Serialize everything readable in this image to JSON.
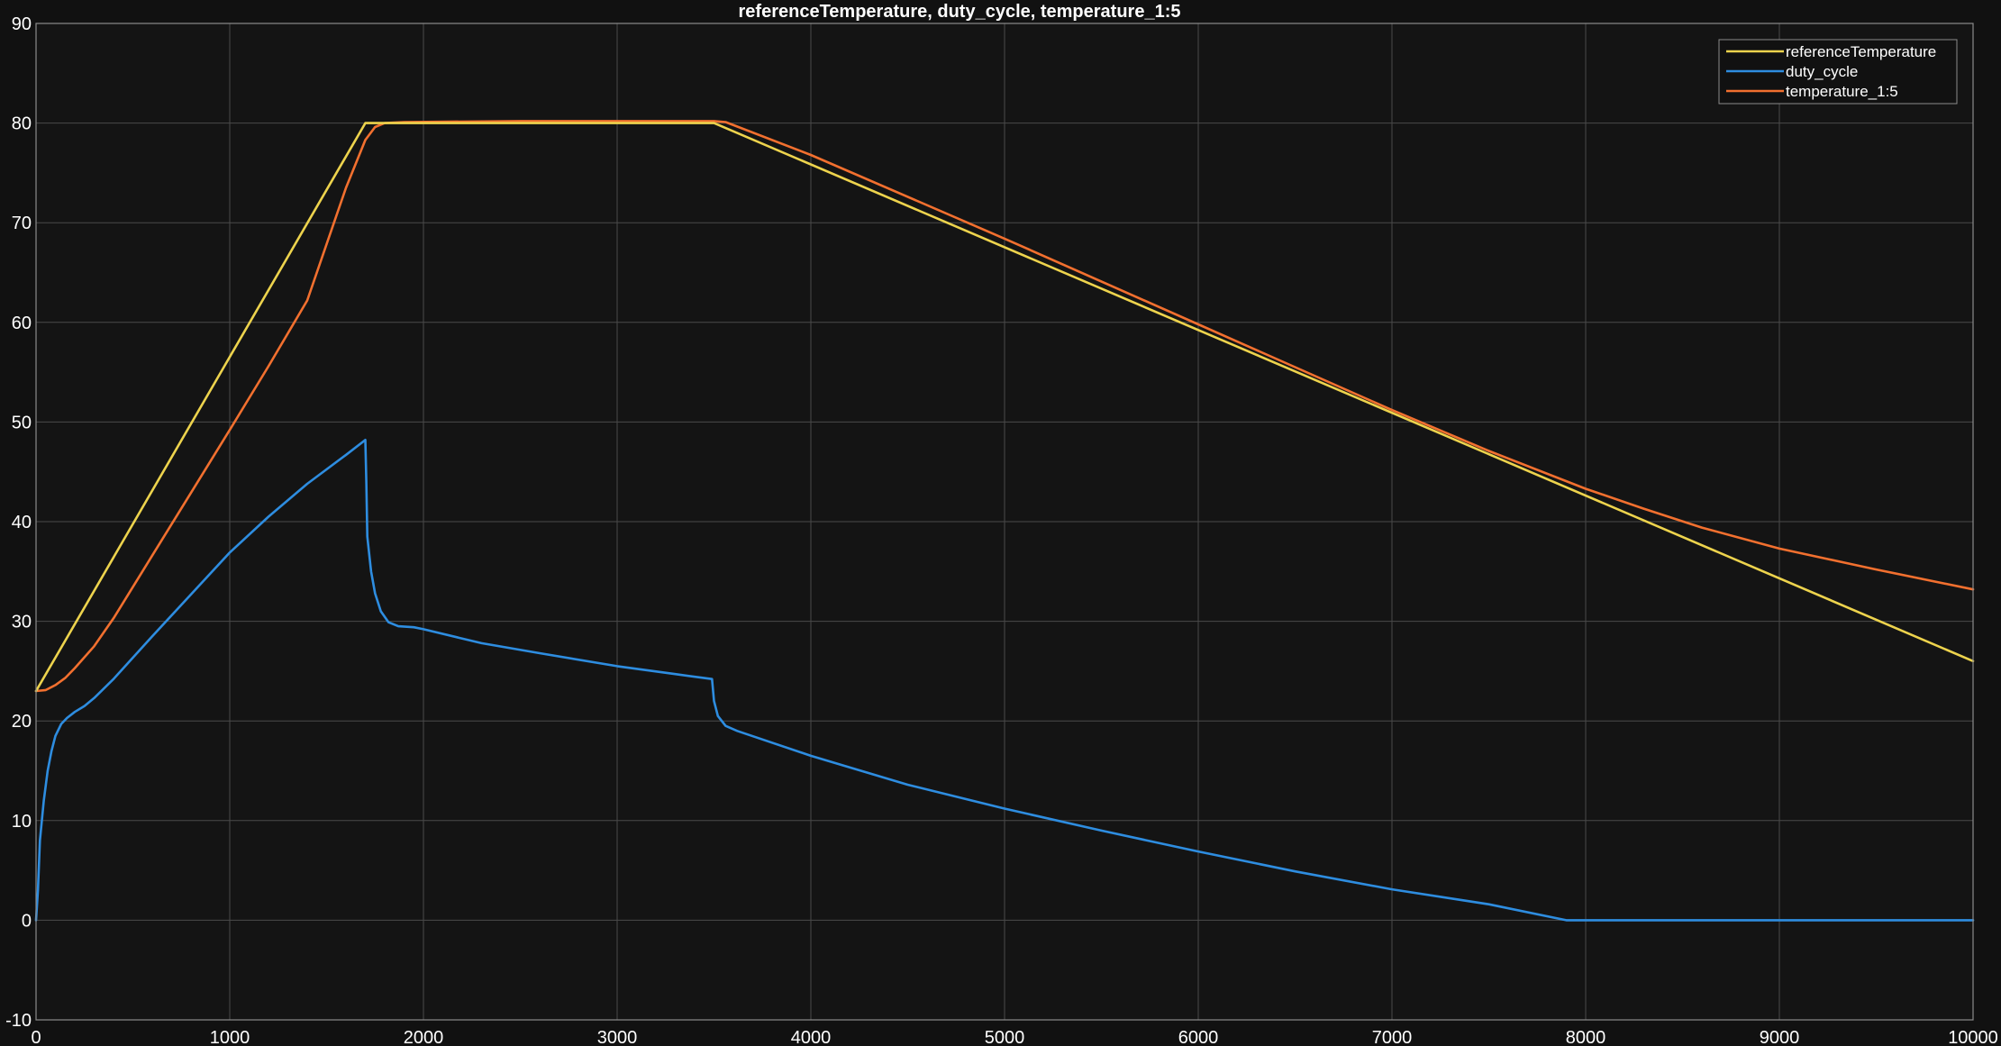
{
  "colors": {
    "background": "#111111",
    "axes_background": "#141414",
    "grid": "#4a4a4a",
    "frame": "#8c8c8c",
    "text": "#ffffff"
  },
  "chart_data": {
    "type": "line",
    "title": "referenceTemperature, duty_cycle, temperature_1:5",
    "xlabel": "",
    "ylabel": "",
    "xlim": [
      0,
      10000
    ],
    "ylim": [
      -10,
      90
    ],
    "xticks": [
      0,
      1000,
      2000,
      3000,
      4000,
      5000,
      6000,
      7000,
      8000,
      9000,
      10000
    ],
    "yticks": [
      -10,
      0,
      10,
      20,
      30,
      40,
      50,
      60,
      70,
      80,
      90
    ],
    "grid": true,
    "legend_position": "top-right",
    "series": [
      {
        "name": "referenceTemperature",
        "color": "#edd34d",
        "points": [
          [
            0,
            23
          ],
          [
            1700,
            80
          ],
          [
            3500,
            80
          ],
          [
            10000,
            26
          ]
        ]
      },
      {
        "name": "duty_cycle",
        "color": "#2e8de0",
        "points": [
          [
            0,
            0
          ],
          [
            10,
            3
          ],
          [
            20,
            8
          ],
          [
            40,
            12
          ],
          [
            60,
            15
          ],
          [
            80,
            17
          ],
          [
            100,
            18.5
          ],
          [
            130,
            19.7
          ],
          [
            160,
            20.3
          ],
          [
            200,
            20.9
          ],
          [
            250,
            21.5
          ],
          [
            300,
            22.3
          ],
          [
            400,
            24.2
          ],
          [
            600,
            28.5
          ],
          [
            800,
            32.7
          ],
          [
            1000,
            36.9
          ],
          [
            1200,
            40.5
          ],
          [
            1400,
            43.8
          ],
          [
            1600,
            46.7
          ],
          [
            1700,
            48.2
          ],
          [
            1705,
            44
          ],
          [
            1710,
            38.5
          ],
          [
            1730,
            35
          ],
          [
            1750,
            32.8
          ],
          [
            1780,
            31
          ],
          [
            1820,
            29.9
          ],
          [
            1870,
            29.5
          ],
          [
            1950,
            29.4
          ],
          [
            2000,
            29.2
          ],
          [
            2300,
            27.8
          ],
          [
            2600,
            26.8
          ],
          [
            3000,
            25.5
          ],
          [
            3300,
            24.7
          ],
          [
            3490,
            24.2
          ],
          [
            3500,
            22
          ],
          [
            3520,
            20.5
          ],
          [
            3560,
            19.5
          ],
          [
            3620,
            19
          ],
          [
            4000,
            16.5
          ],
          [
            4500,
            13.6
          ],
          [
            5000,
            11.2
          ],
          [
            5500,
            9
          ],
          [
            6000,
            6.9
          ],
          [
            6500,
            4.9
          ],
          [
            7000,
            3.1
          ],
          [
            7500,
            1.6
          ],
          [
            7900,
            0
          ],
          [
            10000,
            0
          ]
        ]
      },
      {
        "name": "temperature_1:5",
        "color": "#f2702f",
        "points": [
          [
            0,
            23
          ],
          [
            50,
            23.1
          ],
          [
            100,
            23.6
          ],
          [
            150,
            24.3
          ],
          [
            200,
            25.3
          ],
          [
            300,
            27.5
          ],
          [
            400,
            30.3
          ],
          [
            600,
            36.6
          ],
          [
            800,
            42.9
          ],
          [
            1000,
            49.2
          ],
          [
            1200,
            55.6
          ],
          [
            1400,
            62.2
          ],
          [
            1600,
            73.5
          ],
          [
            1700,
            78.3
          ],
          [
            1750,
            79.6
          ],
          [
            1800,
            80
          ],
          [
            1900,
            80.1
          ],
          [
            2500,
            80.2
          ],
          [
            3500,
            80.2
          ],
          [
            3560,
            80.1
          ],
          [
            4000,
            76.8
          ],
          [
            5000,
            68.4
          ],
          [
            6000,
            59.8
          ],
          [
            7000,
            51.2
          ],
          [
            7500,
            47.1
          ],
          [
            8000,
            43.3
          ],
          [
            8300,
            41.3
          ],
          [
            8600,
            39.4
          ],
          [
            9000,
            37.3
          ],
          [
            9500,
            35.2
          ],
          [
            10000,
            33.2
          ]
        ]
      }
    ]
  }
}
